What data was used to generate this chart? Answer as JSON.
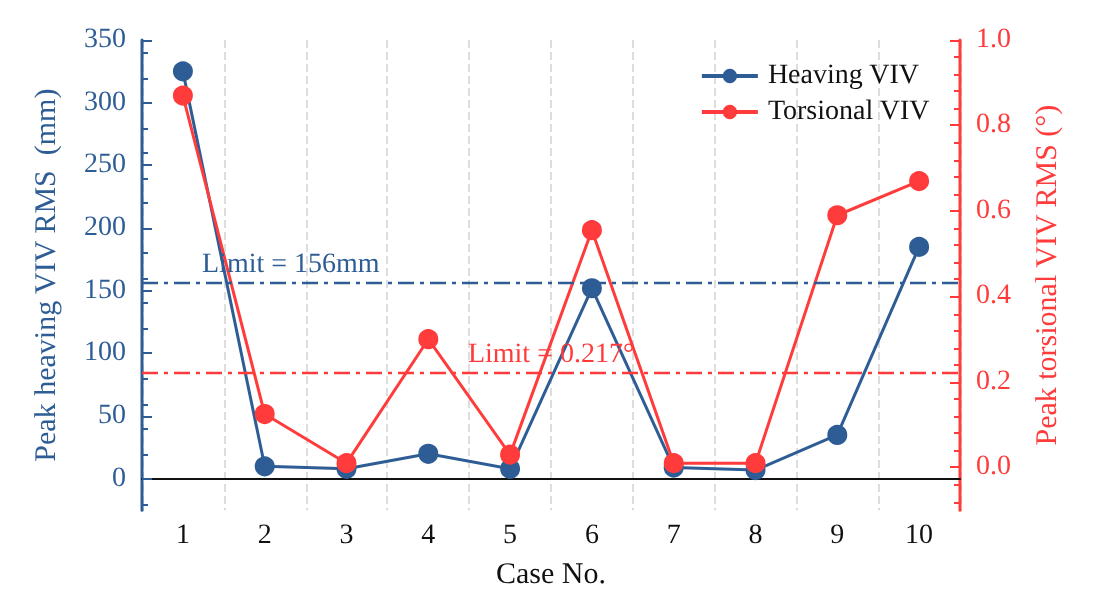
{
  "chart_data": {
    "type": "line",
    "xlabel": "Case No.",
    "ylabel": "Peak heaving VIV RMS  (mm)",
    "y2label": "Peak torsional VIV RMS (°)",
    "categories": [
      "1",
      "2",
      "3",
      "4",
      "5",
      "6",
      "7",
      "8",
      "9",
      "10"
    ],
    "series": [
      {
        "name": "Heaving VIV",
        "color": "#2e5d95",
        "values": [
          325,
          10,
          8,
          20,
          8,
          152,
          9,
          7,
          35,
          185
        ]
      },
      {
        "name": "Torsional VIV",
        "color": "#ff3b3b",
        "axis": "y2",
        "values": [
          0.87,
          0.125,
          0.01,
          0.3,
          0.03,
          0.555,
          0.01,
          0.01,
          0.59,
          0.67
        ]
      }
    ],
    "ylim": [
      -25,
      350
    ],
    "yticks": [
      0,
      50,
      100,
      150,
      200,
      250,
      300,
      350
    ],
    "y2lim": [
      -0.1,
      1.0
    ],
    "y2ticks": [
      {
        "value": 0,
        "label": "0.0"
      },
      {
        "value": 0.2,
        "label": "0.2"
      },
      {
        "value": 0.4,
        "label": "0.4"
      },
      {
        "value": 0.6,
        "label": "0.6"
      },
      {
        "value": 0.8,
        "label": "0.8"
      },
      {
        "value": 1,
        "label": "1.0"
      }
    ],
    "ref_lines": [
      {
        "axis": "y",
        "value": 156,
        "label": "Limit = 156mm",
        "color": "#2e5d95",
        "line_style": "dashed"
      },
      {
        "axis": "y2",
        "value": 0.217,
        "label": "Limit = 0.217°",
        "color": "#ff3b3b",
        "line_style": "dashed"
      }
    ],
    "grid": "x",
    "legend": "top right",
    "marker": "circle",
    "line_style": "solid"
  }
}
